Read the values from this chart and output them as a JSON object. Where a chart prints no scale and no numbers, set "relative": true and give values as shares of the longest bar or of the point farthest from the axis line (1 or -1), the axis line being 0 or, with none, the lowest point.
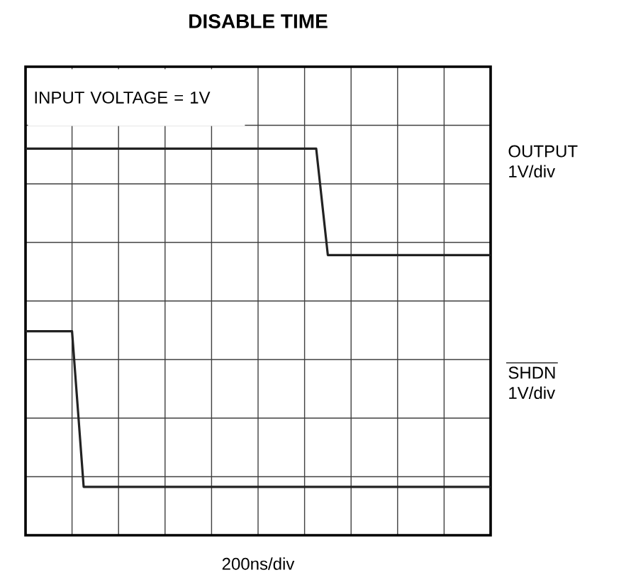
{
  "chart_data": {
    "type": "line",
    "title": "DISABLE TIME",
    "xlabel": "200ns/div",
    "annotations": [
      "INPUT VOLTAGE = 1V",
      "1V/div",
      "1V/div"
    ],
    "categories": [
      null,
      null,
      null,
      null,
      null,
      null,
      null,
      null,
      null,
      null,
      null,
      null,
      null,
      null,
      null,
      null,
      null,
      null,
      null,
      null,
      null,
      null,
      null,
      null,
      null,
      null,
      null,
      null,
      null,
      null,
      null,
      null,
      null,
      null,
      null,
      null,
      null,
      null,
      null,
      null,
      null
    ],
    "relative": true,
    "grid": true,
    "legend": false,
    "marker": "none",
    "line_style": "solid",
    "series": [
      {
        "name": "OUTPUT",
        "color": "#222222",
        "values": [
          1,
          1,
          1,
          1,
          1,
          1,
          1,
          1,
          1,
          1,
          1,
          1,
          1,
          1,
          1,
          1,
          1,
          1,
          1,
          1,
          1,
          1,
          1,
          1,
          1,
          1,
          0.685,
          0.685,
          0.685,
          0.685,
          0.685,
          0.685,
          0.685,
          0.685,
          0.685,
          0.685,
          0.685,
          0.685,
          0.685,
          0.685,
          0.685
        ]
      },
      {
        "name": "SHDN",
        "color": "#222222",
        "values": [
          0.46,
          0.46,
          0.46,
          0.46,
          0.46,
          0,
          0,
          0,
          0,
          0,
          0,
          0,
          0,
          0,
          0,
          0,
          0,
          0,
          0,
          0,
          0,
          0,
          0,
          0,
          0,
          0,
          0,
          0,
          0,
          0,
          0,
          0,
          0,
          0,
          0,
          0,
          0,
          0,
          0,
          0,
          0
        ]
      }
    ]
  }
}
